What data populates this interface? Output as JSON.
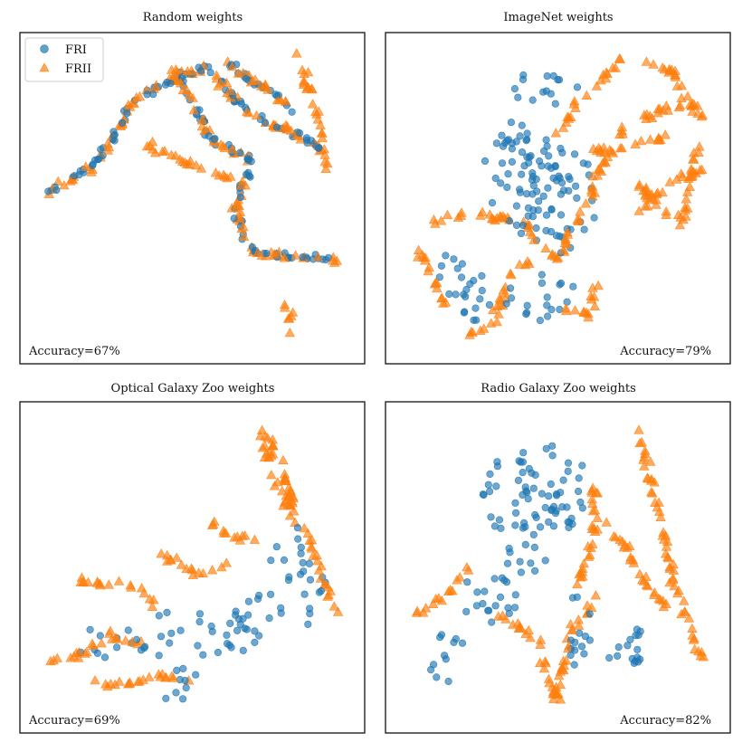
{
  "colors": {
    "FRI": "#1f77b4",
    "FRII": "#ff7f0e"
  },
  "chart_data": [
    {
      "type": "scatter",
      "title": "Random weights",
      "annotation": "Accuracy=67%",
      "legend": {
        "placement": "top-left",
        "entries": [
          {
            "label": "FRI",
            "marker": "circle"
          },
          {
            "label": "FRII",
            "marker": "triangle"
          }
        ]
      },
      "grid": false,
      "axes_visible": false,
      "series": [
        {
          "name": "FRI",
          "marker": "circle",
          "strokes": [
            [
              [
                0.05,
                0.52
              ],
              [
                0.2,
                0.61
              ],
              [
                0.33,
                0.84
              ],
              [
                0.55,
                0.93
              ],
              [
                0.67,
                0.78
              ],
              [
                0.9,
                0.67
              ]
            ],
            [
              [
                0.45,
                0.92
              ],
              [
                0.56,
                0.69
              ],
              [
                0.68,
                0.63
              ],
              [
                0.63,
                0.45
              ],
              [
                0.7,
                0.32
              ],
              [
                0.95,
                0.3
              ]
            ],
            [
              [
                0.6,
                0.95
              ],
              [
                0.7,
                0.88
              ],
              [
                0.82,
                0.79
              ]
            ]
          ]
        },
        {
          "name": "FRII",
          "marker": "triangle",
          "strokes": [
            [
              [
                0.05,
                0.52
              ],
              [
                0.2,
                0.61
              ],
              [
                0.33,
                0.84
              ],
              [
                0.55,
                0.93
              ],
              [
                0.67,
                0.78
              ],
              [
                0.9,
                0.67
              ]
            ],
            [
              [
                0.45,
                0.92
              ],
              [
                0.56,
                0.69
              ],
              [
                0.68,
                0.63
              ],
              [
                0.63,
                0.45
              ],
              [
                0.7,
                0.32
              ],
              [
                0.95,
                0.3
              ]
            ],
            [
              [
                0.6,
                0.95
              ],
              [
                0.7,
                0.88
              ],
              [
                0.82,
                0.79
              ]
            ],
            [
              [
                0.82,
                0.98
              ],
              [
                0.9,
                0.75
              ],
              [
                0.92,
                0.6
              ]
            ],
            [
              [
                0.8,
                0.15
              ],
              [
                0.81,
                0.05
              ]
            ],
            [
              [
                0.35,
                0.68
              ],
              [
                0.6,
                0.57
              ],
              [
                0.66,
                0.55
              ]
            ]
          ]
        }
      ]
    },
    {
      "type": "scatter",
      "title": "ImageNet weights",
      "annotation": "Accuracy=79%",
      "grid": false,
      "axes_visible": false,
      "series": [
        {
          "name": "FRI",
          "marker": "circle",
          "blobs": [
            [
              0.4,
              0.55,
              0.12,
              0.17
            ],
            [
              0.5,
              0.5,
              0.13,
              0.18
            ],
            [
              0.35,
              0.65,
              0.1,
              0.1
            ],
            [
              0.45,
              0.85,
              0.12,
              0.06
            ],
            [
              0.2,
              0.25,
              0.1,
              0.08
            ],
            [
              0.45,
              0.18,
              0.12,
              0.08
            ],
            [
              0.25,
              0.15,
              0.06,
              0.06
            ]
          ]
        },
        {
          "name": "FRII",
          "marker": "triangle",
          "strokes": [
            [
              [
                0.1,
                0.42
              ],
              [
                0.2,
                0.45
              ],
              [
                0.38,
                0.43
              ],
              [
                0.5,
                0.3
              ],
              [
                0.7,
                0.73
              ],
              [
                0.85,
                0.8
              ],
              [
                0.95,
                0.8
              ]
            ],
            [
              [
                0.75,
                0.95
              ],
              [
                0.85,
                0.92
              ],
              [
                0.95,
                0.75
              ]
            ],
            [
              [
                0.75,
                0.55
              ],
              [
                0.88,
                0.4
              ],
              [
                0.95,
                0.7
              ]
            ],
            [
              [
                0.74,
                0.45
              ],
              [
                0.85,
                0.55
              ],
              [
                0.95,
                0.6
              ]
            ],
            [
              [
                0.05,
                0.35
              ],
              [
                0.1,
                0.25
              ],
              [
                0.15,
                0.15
              ]
            ],
            [
              [
                0.22,
                0.05
              ],
              [
                0.3,
                0.1
              ],
              [
                0.35,
                0.25
              ],
              [
                0.42,
                0.3
              ]
            ],
            [
              [
                0.5,
                0.15
              ],
              [
                0.6,
                0.12
              ],
              [
                0.62,
                0.22
              ]
            ],
            [
              [
                0.6,
                0.65
              ],
              [
                0.75,
                0.68
              ],
              [
                0.85,
                0.7
              ]
            ],
            [
              [
                0.5,
                0.72
              ],
              [
                0.6,
                0.85
              ],
              [
                0.7,
                0.95
              ]
            ]
          ]
        }
      ]
    },
    {
      "type": "scatter",
      "title": "Optical Galaxy Zoo weights",
      "annotation": "Accuracy=69%",
      "grid": false,
      "axes_visible": false,
      "series": [
        {
          "name": "FRI",
          "marker": "circle",
          "blobs": [
            [
              0.5,
              0.28,
              0.22,
              0.08
            ],
            [
              0.45,
              0.12,
              0.08,
              0.06
            ],
            [
              0.8,
              0.55,
              0.06,
              0.1
            ],
            [
              0.88,
              0.4,
              0.05,
              0.12
            ],
            [
              0.2,
              0.25,
              0.08,
              0.05
            ],
            [
              0.7,
              0.35,
              0.08,
              0.08
            ]
          ]
        },
        {
          "name": "FRII",
          "marker": "triangle",
          "strokes": [
            [
              [
                0.72,
                0.95
              ],
              [
                0.78,
                0.85
              ],
              [
                0.8,
                0.75
              ],
              [
                0.9,
                0.5
              ],
              [
                0.95,
                0.35
              ]
            ],
            [
              [
                0.72,
                0.95
              ],
              [
                0.75,
                0.8
              ],
              [
                0.82,
                0.65
              ]
            ],
            [
              [
                0.4,
                0.55
              ],
              [
                0.5,
                0.48
              ],
              [
                0.6,
                0.5
              ]
            ],
            [
              [
                0.15,
                0.45
              ],
              [
                0.3,
                0.45
              ],
              [
                0.38,
                0.38
              ]
            ],
            [
              [
                0.05,
                0.2
              ],
              [
                0.15,
                0.22
              ],
              [
                0.25,
                0.28
              ],
              [
                0.35,
                0.25
              ]
            ],
            [
              [
                0.2,
                0.12
              ],
              [
                0.3,
                0.12
              ],
              [
                0.4,
                0.15
              ],
              [
                0.5,
                0.12
              ]
            ],
            [
              [
                0.55,
                0.65
              ],
              [
                0.62,
                0.6
              ],
              [
                0.7,
                0.6
              ]
            ]
          ]
        }
      ]
    },
    {
      "type": "scatter",
      "title": "Radio Galaxy Zoo weights",
      "annotation": "Accuracy=82%",
      "grid": false,
      "axes_visible": false,
      "series": [
        {
          "name": "FRI",
          "marker": "circle",
          "blobs": [
            [
              0.38,
              0.68,
              0.12,
              0.22
            ],
            [
              0.28,
              0.4,
              0.1,
              0.1
            ],
            [
              0.15,
              0.2,
              0.06,
              0.1
            ],
            [
              0.5,
              0.75,
              0.1,
              0.15
            ],
            [
              0.55,
              0.3,
              0.06,
              0.12
            ],
            [
              0.75,
              0.25,
              0.05,
              0.05
            ],
            [
              0.7,
              0.2,
              0.06,
              0.04
            ]
          ]
        },
        {
          "name": "FRII",
          "marker": "triangle",
          "strokes": [
            [
              [
                0.75,
                0.95
              ],
              [
                0.8,
                0.75
              ],
              [
                0.85,
                0.5
              ],
              [
                0.95,
                0.2
              ]
            ],
            [
              [
                0.6,
                0.8
              ],
              [
                0.62,
                0.7
              ],
              [
                0.6,
                0.55
              ],
              [
                0.55,
                0.42
              ]
            ],
            [
              [
                0.65,
                0.65
              ],
              [
                0.72,
                0.55
              ],
              [
                0.78,
                0.45
              ],
              [
                0.85,
                0.35
              ]
            ],
            [
              [
                0.05,
                0.35
              ],
              [
                0.12,
                0.38
              ],
              [
                0.18,
                0.45
              ],
              [
                0.22,
                0.5
              ]
            ],
            [
              [
                0.3,
                0.35
              ],
              [
                0.38,
                0.3
              ],
              [
                0.45,
                0.25
              ]
            ],
            [
              [
                0.48,
                0.05
              ],
              [
                0.5,
                0.15
              ],
              [
                0.55,
                0.3
              ],
              [
                0.62,
                0.4
              ]
            ],
            [
              [
                0.45,
                0.2
              ],
              [
                0.48,
                0.12
              ],
              [
                0.52,
                0.05
              ]
            ]
          ]
        }
      ]
    }
  ]
}
